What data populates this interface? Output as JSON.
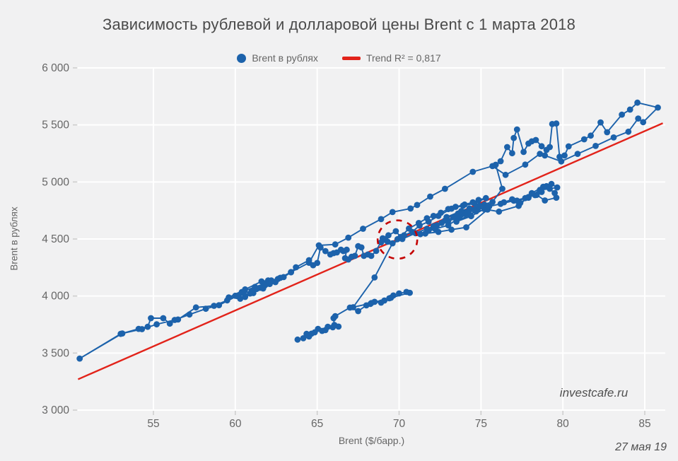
{
  "title": "Зависимость рублевой и долларовой цены Brent с 1 марта 2018",
  "watermark": "investcafe.ru",
  "date_note": "27 мая 19",
  "legend": [
    {
      "label": "Brent в рублях",
      "type": "marker",
      "color": "#1c62ab"
    },
    {
      "label": "Trend R² = 0,817",
      "type": "line",
      "color": "#e2231a"
    }
  ],
  "colors": {
    "background": "#f1f1f2",
    "gridline": "#ffffff",
    "tick": "#cccccc",
    "series_blue": "#1c62ab",
    "trend_red": "#e2231a",
    "annotation_red": "#c40000",
    "text_gray": "#666666",
    "title_gray": "#4a4a4a"
  },
  "chart_data": {
    "type": "scatter",
    "title": "Зависимость рублевой и долларовой цены Brent с 1 марта 2018",
    "xlabel": "Brent ($/барр.)",
    "ylabel": "Brent в рублях",
    "xlim": [
      50.4,
      86.3
    ],
    "ylim": [
      3000,
      6000
    ],
    "grid": true,
    "legend_position": "top-center",
    "x_ticks": [
      55,
      60,
      65,
      70,
      75,
      80,
      85
    ],
    "y_ticks": [
      3000,
      3500,
      4000,
      4500,
      5000,
      5500,
      6000
    ],
    "y_tick_labels": [
      "3 000",
      "3 500",
      "4 000",
      "4 500",
      "5 000",
      "5 500",
      "6 000"
    ],
    "trend": {
      "label": "Trend R² = 0,817",
      "r2": "0,817",
      "x1": 50.4,
      "y1": 3270,
      "x2": 86.1,
      "y2": 5515
    },
    "annotation_circle": {
      "x": 69.9,
      "y": 4495,
      "rx_dollars": 1.21,
      "ry_rub": 168,
      "style": "dashed"
    },
    "series": [
      {
        "name": "Brent в рублях",
        "connected": true,
        "points": [
          [
            63.8,
            3618
          ],
          [
            64.15,
            3630
          ],
          [
            64.5,
            3645
          ],
          [
            64.35,
            3668
          ],
          [
            64.65,
            3670
          ],
          [
            64.85,
            3682
          ],
          [
            65.05,
            3712
          ],
          [
            65.3,
            3694
          ],
          [
            65.5,
            3701
          ],
          [
            65.65,
            3731
          ],
          [
            65.95,
            3726
          ],
          [
            66.3,
            3732
          ],
          [
            66.05,
            3746
          ],
          [
            66.0,
            3806
          ],
          [
            66.1,
            3824
          ],
          [
            67.0,
            3899
          ],
          [
            67.5,
            3868
          ],
          [
            68.0,
            3918
          ],
          [
            68.25,
            3931
          ],
          [
            68.5,
            3949
          ],
          [
            68.9,
            3942
          ],
          [
            69.1,
            3961
          ],
          [
            69.4,
            3980
          ],
          [
            69.65,
            4005
          ],
          [
            70.0,
            4023
          ],
          [
            70.45,
            4036
          ],
          [
            70.65,
            4028
          ],
          [
            69.5,
            3985
          ],
          [
            68.3,
            3938
          ],
          [
            67.2,
            3902
          ],
          [
            68.5,
            4163
          ],
          [
            69.6,
            4462
          ],
          [
            70.2,
            4500
          ],
          [
            71.0,
            4551
          ],
          [
            71.7,
            4590
          ],
          [
            72.3,
            4620
          ],
          [
            73.0,
            4658
          ],
          [
            73.7,
            4690
          ],
          [
            74.3,
            4715
          ],
          [
            74.0,
            4736
          ],
          [
            74.8,
            4760
          ],
          [
            75.5,
            4785
          ],
          [
            76.2,
            4808
          ],
          [
            77.0,
            4836
          ],
          [
            77.7,
            4858
          ],
          [
            78.3,
            4884
          ],
          [
            78.7,
            4912
          ],
          [
            79.0,
            4963
          ],
          [
            79.5,
            4903
          ],
          [
            79.6,
            4862
          ],
          [
            78.9,
            4838
          ],
          [
            78.4,
            4886
          ],
          [
            77.9,
            4868
          ],
          [
            77.4,
            4816
          ],
          [
            76.9,
            4848
          ],
          [
            76.4,
            4822
          ],
          [
            77.2,
            4836
          ],
          [
            77.9,
            4862
          ],
          [
            78.6,
            4930
          ],
          [
            79.2,
            4940
          ],
          [
            79.65,
            4952
          ],
          [
            79.3,
            4982
          ],
          [
            78.8,
            4958
          ],
          [
            78.1,
            4902
          ],
          [
            77.3,
            4790
          ],
          [
            76.1,
            4740
          ],
          [
            75.2,
            4762
          ],
          [
            74.4,
            4700
          ],
          [
            73.5,
            4652
          ],
          [
            74.7,
            4742
          ],
          [
            75.4,
            4758
          ],
          [
            74.1,
            4602
          ],
          [
            73.2,
            4582
          ],
          [
            72.4,
            4562
          ],
          [
            71.6,
            4548
          ],
          [
            72.1,
            4612
          ],
          [
            72.8,
            4662
          ],
          [
            73.6,
            4702
          ],
          [
            74.2,
            4738
          ],
          [
            73.0,
            4620
          ],
          [
            72.2,
            4588
          ],
          [
            71.3,
            4542
          ],
          [
            71.8,
            4575
          ],
          [
            72.6,
            4640
          ],
          [
            73.3,
            4690
          ],
          [
            74.0,
            4722
          ],
          [
            74.6,
            4752
          ],
          [
            75.2,
            4802
          ],
          [
            74.3,
            4768
          ],
          [
            73.6,
            4723
          ],
          [
            72.9,
            4692
          ],
          [
            73.8,
            4745
          ],
          [
            74.9,
            4792
          ],
          [
            75.7,
            4825
          ],
          [
            76.3,
            4940
          ],
          [
            75.9,
            5151
          ],
          [
            76.2,
            5182
          ],
          [
            76.6,
            5306
          ],
          [
            76.9,
            5252
          ],
          [
            77.0,
            5386
          ],
          [
            77.2,
            5460
          ],
          [
            77.6,
            5263
          ],
          [
            77.9,
            5337
          ],
          [
            78.1,
            5356
          ],
          [
            78.35,
            5368
          ],
          [
            78.7,
            5313
          ],
          [
            79.0,
            5281
          ],
          [
            79.2,
            5306
          ],
          [
            79.35,
            5508
          ],
          [
            79.6,
            5512
          ],
          [
            79.8,
            5220
          ],
          [
            80.1,
            5232
          ],
          [
            80.35,
            5312
          ],
          [
            81.3,
            5374
          ],
          [
            81.7,
            5406
          ],
          [
            82.3,
            5522
          ],
          [
            82.7,
            5436
          ],
          [
            83.6,
            5590
          ],
          [
            84.1,
            5634
          ],
          [
            84.55,
            5695
          ],
          [
            85.8,
            5652
          ],
          [
            84.9,
            5524
          ],
          [
            84.6,
            5556
          ],
          [
            84.0,
            5440
          ],
          [
            83.1,
            5390
          ],
          [
            82.0,
            5316
          ],
          [
            80.9,
            5246
          ],
          [
            79.9,
            5180
          ],
          [
            78.9,
            5232
          ],
          [
            78.6,
            5246
          ],
          [
            77.7,
            5152
          ],
          [
            76.5,
            5062
          ],
          [
            75.7,
            5139
          ],
          [
            74.5,
            5089
          ],
          [
            72.8,
            4940
          ],
          [
            71.9,
            4872
          ],
          [
            71.1,
            4798
          ],
          [
            70.7,
            4767
          ],
          [
            69.6,
            4736
          ],
          [
            68.9,
            4674
          ],
          [
            67.8,
            4590
          ],
          [
            66.9,
            4512
          ],
          [
            66.1,
            4452
          ],
          [
            65.1,
            4444
          ],
          [
            64.5,
            4292
          ],
          [
            63.4,
            4210
          ],
          [
            62.6,
            4150
          ],
          [
            61.9,
            4112
          ],
          [
            61.2,
            4080
          ],
          [
            60.4,
            4035
          ],
          [
            59.6,
            3988
          ],
          [
            60.6,
            4058
          ],
          [
            61.6,
            4128
          ],
          [
            62.0,
            4136
          ],
          [
            60.9,
            4022
          ],
          [
            60.1,
            4000
          ],
          [
            59.0,
            3920
          ],
          [
            58.2,
            3888
          ],
          [
            57.2,
            3838
          ],
          [
            56.3,
            3790
          ],
          [
            55.2,
            3752
          ],
          [
            54.3,
            3710
          ],
          [
            53.1,
            3672
          ],
          [
            50.5,
            3452
          ],
          [
            53.0,
            3668
          ],
          [
            54.1,
            3712
          ],
          [
            54.65,
            3730
          ],
          [
            54.85,
            3806
          ],
          [
            55.6,
            3806
          ],
          [
            56.0,
            3758
          ],
          [
            56.5,
            3794
          ],
          [
            57.6,
            3900
          ],
          [
            58.7,
            3914
          ],
          [
            59.5,
            3962
          ],
          [
            60.0,
            4002
          ],
          [
            60.5,
            4026
          ],
          [
            61.0,
            4044
          ],
          [
            60.6,
            3992
          ],
          [
            61.3,
            4062
          ],
          [
            61.8,
            4092
          ],
          [
            61.1,
            4026
          ],
          [
            60.3,
            3976
          ],
          [
            61.5,
            4072
          ],
          [
            62.1,
            4106
          ],
          [
            62.45,
            4122
          ],
          [
            61.7,
            4066
          ],
          [
            62.2,
            4136
          ],
          [
            62.75,
            4160
          ],
          [
            62.95,
            4166
          ],
          [
            63.4,
            4208
          ],
          [
            63.7,
            4252
          ],
          [
            64.5,
            4314
          ],
          [
            64.75,
            4270
          ],
          [
            65.0,
            4290
          ],
          [
            65.2,
            4425
          ],
          [
            65.5,
            4394
          ],
          [
            65.8,
            4364
          ],
          [
            66.0,
            4376
          ],
          [
            66.2,
            4382
          ],
          [
            66.45,
            4406
          ],
          [
            66.6,
            4394
          ],
          [
            66.8,
            4406
          ],
          [
            66.7,
            4332
          ],
          [
            66.9,
            4320
          ],
          [
            67.1,
            4344
          ],
          [
            67.3,
            4352
          ],
          [
            67.5,
            4437
          ],
          [
            67.7,
            4426
          ],
          [
            67.85,
            4352
          ],
          [
            68.1,
            4364
          ],
          [
            68.3,
            4352
          ],
          [
            68.6,
            4395
          ],
          [
            69.0,
            4506
          ],
          [
            69.3,
            4476
          ],
          [
            68.9,
            4470
          ],
          [
            69.15,
            4500
          ],
          [
            69.35,
            4532
          ],
          [
            69.8,
            4568
          ],
          [
            70.1,
            4518
          ],
          [
            70.6,
            4592
          ],
          [
            71.2,
            4640
          ],
          [
            71.7,
            4682
          ],
          [
            72.1,
            4702
          ],
          [
            72.55,
            4730
          ],
          [
            73.0,
            4762
          ],
          [
            73.45,
            4782
          ],
          [
            74.0,
            4802
          ],
          [
            74.5,
            4822
          ],
          [
            74.85,
            4842
          ],
          [
            75.3,
            4858
          ],
          [
            74.6,
            4812
          ],
          [
            73.9,
            4792
          ],
          [
            73.2,
            4766
          ],
          [
            72.4,
            4702
          ],
          [
            71.8,
            4652
          ],
          [
            71.25,
            4618
          ],
          [
            70.8,
            4562
          ],
          [
            70.3,
            4532
          ],
          [
            69.9,
            4498
          ]
        ]
      }
    ]
  }
}
